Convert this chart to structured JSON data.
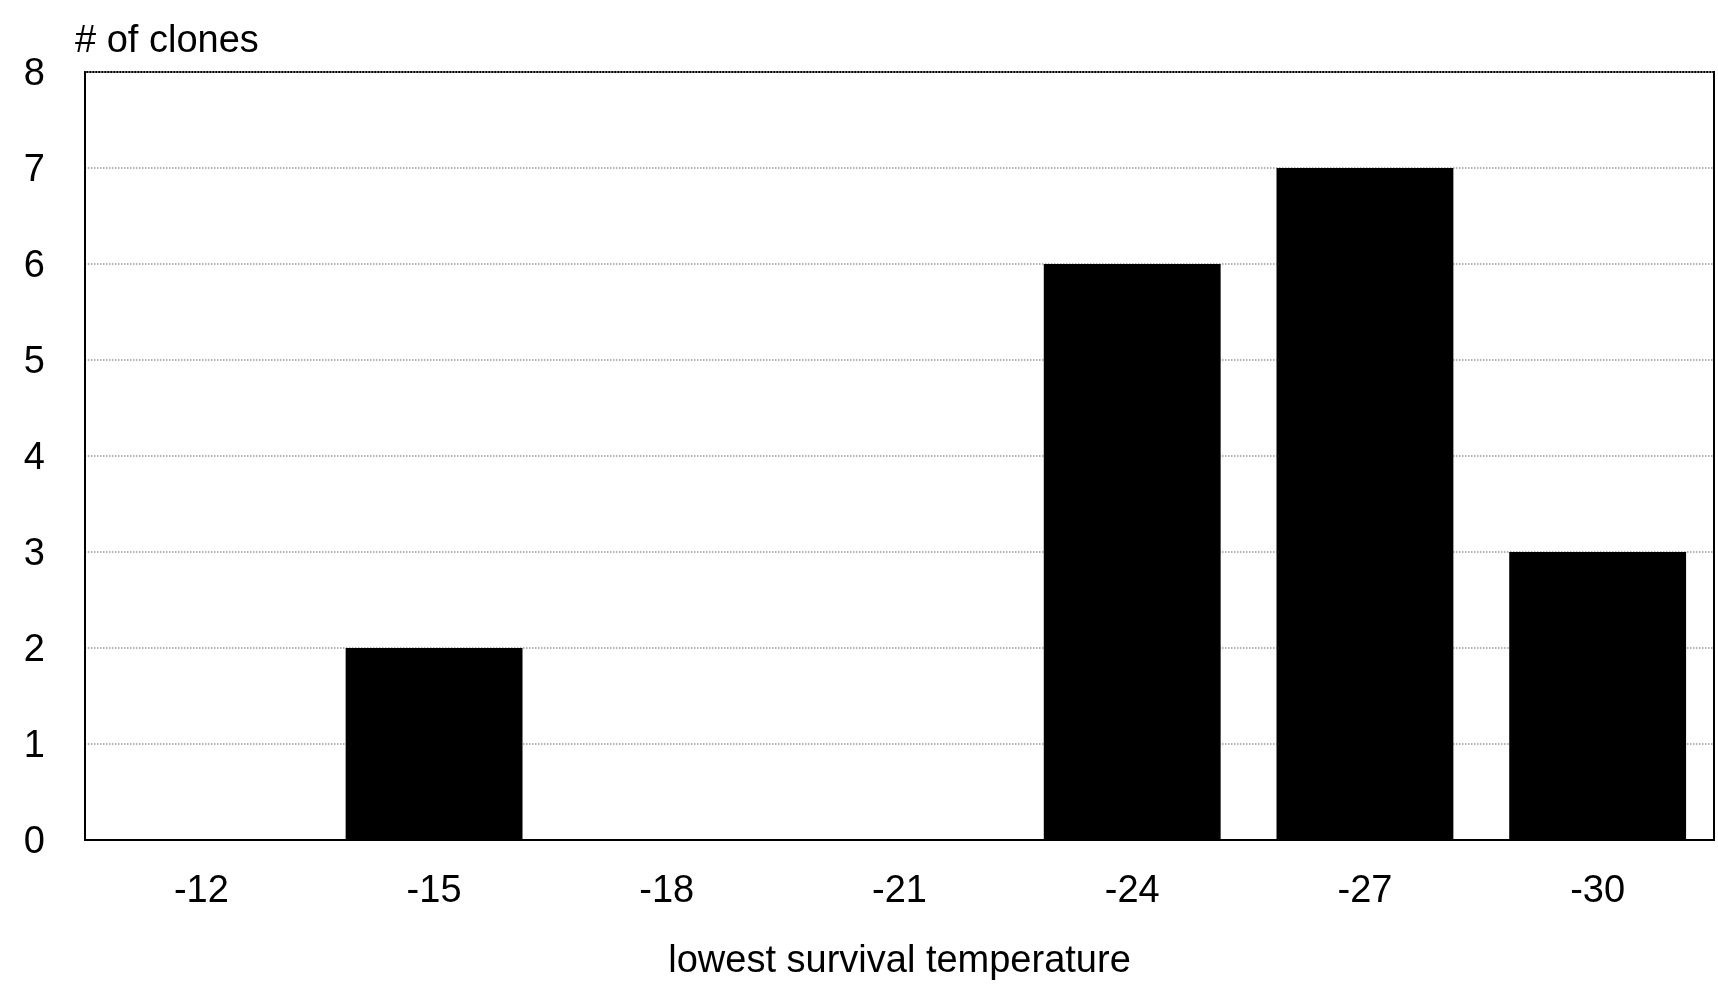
{
  "chart_data": {
    "type": "bar",
    "xlabel": "lowest survival temperature",
    "ylabel": "# of clones",
    "categories": [
      "-12",
      "-15",
      "-18",
      "-21",
      "-24",
      "-27",
      "-30"
    ],
    "values": [
      0,
      2,
      0,
      0,
      6,
      7,
      3
    ],
    "color": "#000000",
    "ylim": [
      0,
      8
    ],
    "yticks": [
      0,
      1,
      2,
      3,
      4,
      5,
      6,
      7,
      8
    ],
    "grid": "y",
    "line_style": "dotted"
  }
}
